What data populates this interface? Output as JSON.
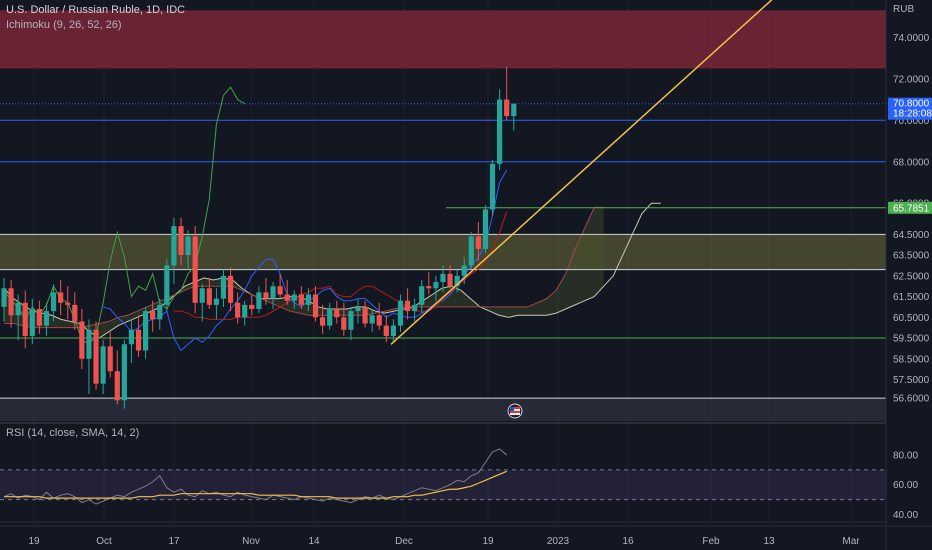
{
  "header": {
    "symbol": "U.S. Dollar / Russian Ruble, 1D, IDC",
    "ichimoku": "Ichimoku (9, 26, 52, 26)",
    "rsi": "RSI (14, close, SMA, 14, 2)",
    "currency": "RUB"
  },
  "colors": {
    "bg": "#131722",
    "grid": "#1e2230",
    "up": "#26a69a",
    "down": "#ef5350",
    "trendline": "#f5c04a",
    "hline_blue": "#2962ff",
    "hline_green": "#4caf50",
    "hline_white": "#d1d4dc",
    "cloud": "#6b6b3a",
    "resist_zone": "#7a2636",
    "rsi_line": "#7e7f87",
    "rsi_ma": "#f5c04a",
    "rsi_band": "#5b4a8a"
  },
  "chart_data": [
    {
      "type": "candlestick",
      "title": "U.S. Dollar / Russian Ruble, 1D, IDC",
      "ylim": [
        55.5,
        75.8
      ],
      "y_ticks": [
        "74.0000",
        "72.0000",
        "70.0000",
        "68.0000",
        "66.0000",
        "64.5000",
        "63.5000",
        "62.5000",
        "61.5000",
        "60.5000",
        "59.5000",
        "58.5000",
        "57.5000",
        "56.6000"
      ],
      "x_ticks": [
        "19",
        "Oct",
        "17",
        "Nov",
        "14",
        "Dec",
        "19",
        "2023",
        "16",
        "Feb",
        "13",
        "Mar"
      ],
      "price_label": "70.8000",
      "countdown_label": "18:28:08",
      "green_label": "65.7851",
      "horizontal_levels": [
        {
          "value": 70.8,
          "color": "blue",
          "style": "dotted"
        },
        {
          "value": 70.0,
          "color": "blue"
        },
        {
          "value": 68.0,
          "color": "blue"
        },
        {
          "value": 65.78,
          "color": "green",
          "partial": true
        },
        {
          "value": 64.5,
          "color": "white"
        },
        {
          "value": 62.8,
          "color": "white"
        },
        {
          "value": 59.5,
          "color": "green"
        },
        {
          "value": 56.6,
          "color": "white"
        }
      ],
      "zones": [
        {
          "from": 72.5,
          "to": 75.3,
          "color": "red"
        },
        {
          "from": 62.8,
          "to": 64.5,
          "color": "olive"
        },
        {
          "from": 55.5,
          "to": 56.6,
          "color": "gray"
        }
      ],
      "trendline": {
        "from": [
          "2022-11-28",
          59.2
        ],
        "to": [
          "2023-03-01",
          78.0
        ]
      },
      "candles": [
        [
          61.0,
          62.4,
          60.3,
          61.9
        ],
        [
          61.9,
          62.3,
          60.0,
          60.6
        ],
        [
          60.6,
          61.6,
          59.4,
          61.2
        ],
        [
          61.2,
          61.8,
          59.0,
          59.6
        ],
        [
          59.6,
          61.4,
          59.2,
          60.9
        ],
        [
          60.9,
          61.3,
          59.7,
          60.1
        ],
        [
          60.1,
          61.2,
          59.6,
          60.8
        ],
        [
          60.8,
          62.1,
          60.3,
          61.7
        ],
        [
          61.7,
          62.3,
          60.6,
          61.2
        ],
        [
          61.2,
          62.0,
          60.4,
          61.1
        ],
        [
          61.1,
          61.7,
          59.9,
          60.3
        ],
        [
          60.3,
          60.9,
          58.0,
          58.5
        ],
        [
          58.5,
          60.4,
          56.8,
          59.9
        ],
        [
          59.9,
          60.3,
          57.0,
          57.3
        ],
        [
          57.3,
          59.4,
          56.8,
          59.1
        ],
        [
          59.1,
          59.8,
          57.6,
          57.9
        ],
        [
          57.9,
          58.9,
          56.3,
          56.5
        ],
        [
          56.5,
          59.4,
          56.1,
          59.2
        ],
        [
          59.2,
          60.4,
          58.3,
          59.9
        ],
        [
          59.9,
          60.6,
          58.6,
          58.9
        ],
        [
          58.9,
          61.0,
          58.5,
          60.8
        ],
        [
          60.8,
          61.3,
          59.8,
          60.4
        ],
        [
          60.4,
          61.4,
          59.9,
          61.1
        ],
        [
          61.1,
          63.3,
          60.8,
          63.0
        ],
        [
          63.0,
          65.3,
          62.1,
          64.9
        ],
        [
          64.9,
          65.3,
          63.0,
          63.5
        ],
        [
          63.5,
          64.7,
          62.8,
          64.4
        ],
        [
          64.4,
          64.9,
          60.7,
          61.2
        ],
        [
          61.2,
          62.1,
          60.3,
          61.9
        ],
        [
          61.9,
          62.4,
          60.9,
          61.1
        ],
        [
          61.1,
          61.9,
          60.4,
          61.4
        ],
        [
          61.4,
          62.8,
          61.0,
          62.5
        ],
        [
          62.5,
          62.9,
          60.8,
          61.2
        ],
        [
          61.2,
          61.7,
          60.2,
          60.5
        ],
        [
          60.5,
          61.3,
          60.1,
          61.1
        ],
        [
          61.1,
          61.6,
          60.6,
          60.9
        ],
        [
          60.9,
          62.0,
          60.7,
          61.7
        ],
        [
          61.7,
          62.4,
          61.1,
          61.4
        ],
        [
          61.4,
          62.2,
          60.9,
          62.0
        ],
        [
          62.0,
          62.6,
          61.4,
          61.6
        ],
        [
          61.6,
          62.3,
          61.1,
          61.3
        ],
        [
          61.3,
          61.8,
          60.9,
          61.6
        ],
        [
          61.6,
          62.0,
          60.9,
          61.1
        ],
        [
          61.1,
          61.9,
          60.8,
          61.6
        ],
        [
          61.6,
          62.0,
          60.3,
          60.5
        ],
        [
          60.5,
          61.1,
          59.7,
          60.1
        ],
        [
          60.1,
          61.2,
          59.9,
          60.9
        ],
        [
          60.9,
          61.3,
          60.2,
          60.5
        ],
        [
          60.5,
          61.2,
          59.6,
          59.9
        ],
        [
          59.9,
          61.0,
          59.4,
          60.8
        ],
        [
          60.8,
          61.4,
          60.2,
          61.0
        ],
        [
          61.0,
          61.3,
          60.0,
          60.2
        ],
        [
          60.2,
          60.9,
          59.8,
          60.6
        ],
        [
          60.6,
          61.2,
          59.9,
          60.1
        ],
        [
          60.1,
          60.6,
          59.3,
          59.6
        ],
        [
          59.6,
          60.4,
          59.3,
          60.1
        ],
        [
          60.1,
          61.6,
          59.8,
          61.3
        ],
        [
          61.3,
          61.9,
          60.4,
          60.8
        ],
        [
          60.8,
          61.4,
          60.3,
          61.1
        ],
        [
          61.1,
          62.3,
          60.7,
          62.0
        ],
        [
          62.0,
          62.7,
          61.6,
          61.9
        ],
        [
          61.9,
          62.5,
          61.3,
          62.2
        ],
        [
          62.2,
          63.0,
          61.7,
          62.6
        ],
        [
          62.6,
          63.0,
          61.9,
          62.0
        ],
        [
          62.0,
          62.8,
          61.7,
          62.5
        ],
        [
          62.5,
          63.4,
          62.1,
          63.0
        ],
        [
          63.0,
          64.6,
          62.8,
          64.4
        ],
        [
          64.4,
          65.1,
          63.2,
          63.8
        ],
        [
          63.8,
          65.9,
          63.6,
          65.7
        ],
        [
          65.7,
          68.1,
          65.4,
          67.9
        ],
        [
          67.9,
          71.5,
          67.6,
          71.0
        ],
        [
          71.0,
          72.6,
          70.0,
          70.2
        ],
        [
          70.2,
          70.8,
          69.5,
          70.8
        ]
      ],
      "ichimoku": {
        "conversion": [
          61.0,
          60.9,
          60.5,
          60.2,
          59.8,
          60.0,
          60.3,
          60.4,
          60.5,
          60.8,
          59.5,
          58.9,
          59.2,
          59.5,
          59.3,
          59.6,
          60.1,
          60.4,
          60.9,
          61.3,
          61.8,
          62.5,
          62.9,
          63.3,
          63.3,
          62.6,
          61.6,
          61.2,
          61.0,
          61.3,
          61.5,
          61.8,
          61.9,
          61.5,
          61.3,
          61.3,
          61.4,
          61.4,
          61.1,
          60.8,
          60.5,
          60.7,
          60.6,
          60.5,
          60.5,
          60.7,
          60.9,
          61.2,
          61.3,
          61.6,
          62.0,
          62.5,
          63.0,
          63.4,
          64.0,
          65.4,
          67.0,
          67.6
        ],
        "base": [
          60.8,
          60.8,
          60.7,
          60.5,
          60.5,
          60.4,
          60.4,
          60.4,
          60.4,
          60.5,
          60.5,
          60.5,
          60.5,
          60.6,
          60.8,
          61.0,
          61.2,
          61.4,
          61.6,
          61.7,
          61.9,
          61.9,
          62.0,
          61.6,
          61.5,
          61.5,
          61.8,
          62.0,
          62.0,
          61.8,
          61.6,
          61.4,
          61.2,
          61.0,
          60.8,
          60.8,
          60.8,
          61.0,
          61.4,
          61.7,
          62.0,
          62.3,
          62.6,
          62.8,
          63.2,
          63.8,
          64.6,
          65.6
        ],
        "lagging": [
          61.8,
          61.3,
          61.0,
          60.4,
          61.0,
          60.6,
          61.1,
          62.0,
          61.4,
          61.2,
          60.4,
          59.4,
          59.2,
          59.6,
          61.2,
          63.2,
          64.6,
          63.4,
          61.5,
          62.0,
          61.8,
          62.6,
          61.2,
          60.9,
          61.5,
          61.8,
          62.6,
          63.0,
          64.4,
          66.2,
          69.8,
          71.2,
          71.6,
          71.0,
          70.8
        ],
        "span_a": [
          61.9,
          61.4,
          61.1,
          60.8,
          60.7,
          60.6,
          60.4,
          60.3,
          60.2,
          59.8,
          59.5,
          59.8,
          60.1,
          60.3,
          60.5,
          60.7,
          60.9,
          61.2,
          61.6,
          62.0,
          62.2,
          62.4,
          62.3,
          62.4,
          62.3,
          61.9,
          61.6,
          61.4,
          61.4,
          61.4,
          61.5,
          61.5,
          61.3,
          61.0,
          60.9,
          60.9,
          60.9,
          61.0,
          61.0,
          60.8,
          60.7,
          60.8,
          60.9,
          61.0,
          61.3,
          61.6,
          61.9,
          62.0,
          61.8,
          61.4,
          61.0,
          60.8,
          60.6,
          60.5,
          60.6,
          60.6,
          60.6,
          60.6,
          60.7,
          60.9,
          61.1,
          61.3,
          61.5,
          62.0,
          62.5,
          63.5,
          64.5,
          65.5,
          66.0,
          66.0
        ],
        "span_b": [
          60.2,
          60.2,
          60.1,
          60.0,
          60.0,
          60.0,
          60.0,
          60.0,
          60.0,
          60.1,
          60.2,
          60.3,
          60.5,
          60.6,
          60.8,
          61.0,
          61.2,
          61.4,
          61.6,
          61.8,
          62.0,
          62.0,
          62.0,
          62.0,
          62.0,
          61.8,
          61.6,
          61.4,
          61.2,
          61.0,
          60.8,
          60.7,
          60.6,
          60.6,
          60.6,
          60.6,
          60.6,
          60.6,
          60.6,
          60.7,
          60.8,
          60.9,
          61.0,
          61.0,
          61.0,
          61.0,
          61.0,
          61.0,
          61.0,
          61.0,
          61.0,
          61.0,
          61.0,
          61.0,
          61.0,
          61.0,
          61.2,
          61.4,
          61.8,
          62.6,
          63.8,
          64.8,
          65.8,
          65.8
        ]
      }
    },
    {
      "type": "line",
      "title": "RSI (14, close, SMA, 14, 2)",
      "ylim": [
        35,
        86
      ],
      "y_ticks": [
        "80.00",
        "60.00",
        "40.00"
      ],
      "bands": [
        50,
        70
      ],
      "series": [
        {
          "values": [
            52,
            54,
            51,
            53,
            52,
            50,
            55,
            51,
            53,
            54,
            52,
            48,
            50,
            47,
            49,
            51,
            53,
            52,
            55,
            57,
            59,
            62,
            66,
            58,
            55,
            57,
            53,
            52,
            56,
            54,
            55,
            53,
            52,
            55,
            53,
            52,
            51,
            50,
            53,
            52,
            51,
            50,
            52,
            51,
            50,
            49,
            51,
            50,
            49,
            48,
            50,
            52,
            51,
            53,
            51,
            50,
            52,
            54,
            56,
            58,
            57,
            56,
            58,
            60,
            63,
            62,
            66,
            68,
            75,
            82,
            84,
            80
          ]
        },
        {
          "values": [
            52,
            52,
            52,
            52,
            52,
            52,
            51,
            51,
            51,
            51,
            51,
            51,
            51,
            51,
            51,
            51,
            51,
            51,
            51,
            52,
            52,
            52,
            53,
            53,
            53,
            54,
            54,
            54,
            54,
            54,
            54,
            54,
            54,
            54,
            54,
            54,
            53,
            53,
            53,
            53,
            53,
            53,
            52,
            52,
            52,
            52,
            52,
            51,
            51,
            51,
            51,
            51,
            51,
            51,
            51,
            52,
            52,
            52,
            53,
            53,
            54,
            55,
            56,
            57,
            57,
            58,
            59,
            61,
            63,
            65,
            67,
            69
          ]
        }
      ]
    }
  ]
}
